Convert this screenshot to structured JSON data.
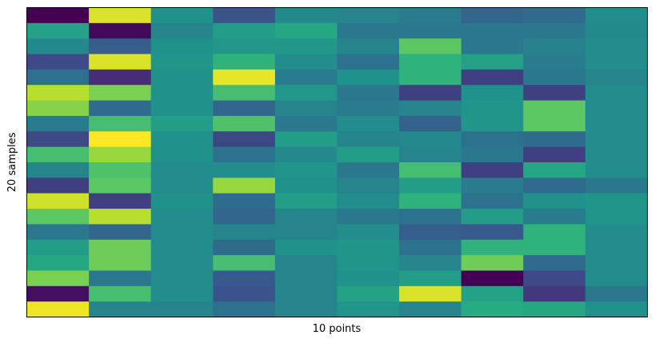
{
  "chart_data": {
    "type": "heatmap",
    "title": "",
    "xlabel": "10 points",
    "ylabel": "20 samples",
    "colormap": "viridis",
    "vmin": 0,
    "vmax": 1,
    "ticks": "none",
    "n_rows": 20,
    "n_cols": 10,
    "values": [
      [
        0.0,
        0.95,
        0.5,
        0.25,
        0.47,
        0.45,
        0.42,
        0.33,
        0.35,
        0.48
      ],
      [
        0.58,
        0.03,
        0.45,
        0.55,
        0.6,
        0.4,
        0.4,
        0.4,
        0.4,
        0.47
      ],
      [
        0.47,
        0.3,
        0.5,
        0.53,
        0.53,
        0.45,
        0.75,
        0.4,
        0.44,
        0.48
      ],
      [
        0.23,
        0.95,
        0.52,
        0.65,
        0.48,
        0.38,
        0.65,
        0.57,
        0.42,
        0.48
      ],
      [
        0.37,
        0.15,
        0.5,
        0.97,
        0.42,
        0.5,
        0.65,
        0.2,
        0.4,
        0.45
      ],
      [
        0.9,
        0.8,
        0.5,
        0.7,
        0.53,
        0.4,
        0.2,
        0.5,
        0.2,
        0.48
      ],
      [
        0.82,
        0.35,
        0.5,
        0.33,
        0.45,
        0.42,
        0.45,
        0.52,
        0.75,
        0.48
      ],
      [
        0.42,
        0.7,
        0.55,
        0.72,
        0.4,
        0.48,
        0.32,
        0.52,
        0.75,
        0.48
      ],
      [
        0.23,
        1.0,
        0.5,
        0.22,
        0.55,
        0.45,
        0.47,
        0.38,
        0.35,
        0.48
      ],
      [
        0.7,
        0.85,
        0.5,
        0.38,
        0.47,
        0.55,
        0.45,
        0.4,
        0.2,
        0.48
      ],
      [
        0.45,
        0.72,
        0.48,
        0.48,
        0.52,
        0.4,
        0.7,
        0.2,
        0.6,
        0.48
      ],
      [
        0.2,
        0.75,
        0.48,
        0.85,
        0.5,
        0.45,
        0.55,
        0.42,
        0.35,
        0.4
      ],
      [
        0.93,
        0.2,
        0.5,
        0.35,
        0.55,
        0.48,
        0.65,
        0.38,
        0.5,
        0.52
      ],
      [
        0.75,
        0.9,
        0.48,
        0.33,
        0.45,
        0.4,
        0.38,
        0.55,
        0.42,
        0.52
      ],
      [
        0.4,
        0.33,
        0.48,
        0.45,
        0.45,
        0.48,
        0.3,
        0.28,
        0.65,
        0.48
      ],
      [
        0.55,
        0.78,
        0.48,
        0.35,
        0.5,
        0.52,
        0.38,
        0.65,
        0.65,
        0.48
      ],
      [
        0.6,
        0.78,
        0.48,
        0.7,
        0.45,
        0.52,
        0.45,
        0.78,
        0.35,
        0.48
      ],
      [
        0.8,
        0.4,
        0.48,
        0.28,
        0.45,
        0.5,
        0.55,
        0.0,
        0.23,
        0.48
      ],
      [
        0.05,
        0.7,
        0.48,
        0.25,
        0.45,
        0.58,
        0.95,
        0.58,
        0.18,
        0.4
      ],
      [
        0.98,
        0.45,
        0.45,
        0.38,
        0.45,
        0.52,
        0.45,
        0.62,
        0.6,
        0.5
      ]
    ]
  }
}
